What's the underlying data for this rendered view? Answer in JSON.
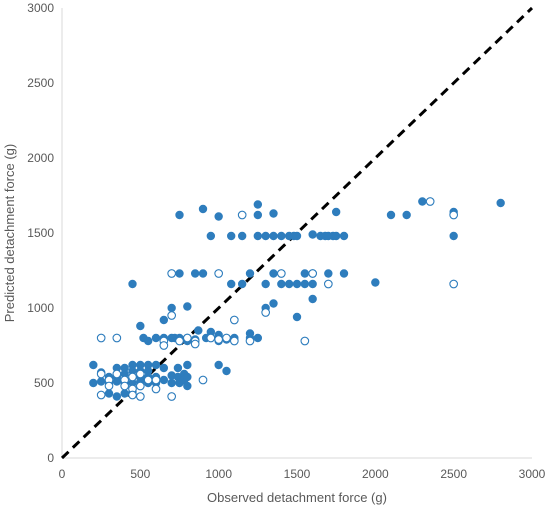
{
  "chart_data": {
    "type": "scatter",
    "title": "",
    "xlabel": "Observed detachment force (g)",
    "ylabel": "Predicted detachment force (g)",
    "xlim": [
      0,
      3000
    ],
    "ylim": [
      0,
      3000
    ],
    "x_ticks": [
      "0",
      "500",
      "1000",
      "1500",
      "2000",
      "2500",
      "3000"
    ],
    "y_ticks": [
      "0",
      "500",
      "1000",
      "1500",
      "2000",
      "2500",
      "3000"
    ],
    "grid": "none",
    "legend": "none",
    "reference_line": {
      "style": "dashed",
      "color": "#000000",
      "from": [
        0,
        0
      ],
      "to": [
        3000,
        3000
      ]
    },
    "colors": {
      "filled": "#2e7dbd",
      "open_stroke": "#2e7dbd",
      "open_fill": "#ffffff",
      "axis": "#d9d9d9",
      "text": "#595959"
    },
    "series": [
      {
        "style": "filled",
        "points": [
          [
            200,
            620
          ],
          [
            200,
            500
          ],
          [
            250,
            570
          ],
          [
            250,
            510
          ],
          [
            300,
            500
          ],
          [
            300,
            430
          ],
          [
            300,
            540
          ],
          [
            350,
            600
          ],
          [
            350,
            540
          ],
          [
            350,
            510
          ],
          [
            350,
            410
          ],
          [
            400,
            600
          ],
          [
            400,
            560
          ],
          [
            400,
            500
          ],
          [
            400,
            430
          ],
          [
            450,
            620
          ],
          [
            450,
            580
          ],
          [
            450,
            540
          ],
          [
            450,
            500
          ],
          [
            450,
            440
          ],
          [
            450,
            1160
          ],
          [
            500,
            620
          ],
          [
            500,
            580
          ],
          [
            500,
            540
          ],
          [
            500,
            510
          ],
          [
            500,
            880
          ],
          [
            520,
            800
          ],
          [
            550,
            620
          ],
          [
            550,
            580
          ],
          [
            550,
            540
          ],
          [
            550,
            500
          ],
          [
            550,
            780
          ],
          [
            600,
            800
          ],
          [
            600,
            620
          ],
          [
            600,
            540
          ],
          [
            600,
            500
          ],
          [
            650,
            920
          ],
          [
            650,
            800
          ],
          [
            650,
            780
          ],
          [
            650,
            600
          ],
          [
            650,
            520
          ],
          [
            700,
            1000
          ],
          [
            700,
            800
          ],
          [
            700,
            550
          ],
          [
            700,
            500
          ],
          [
            720,
            800
          ],
          [
            740,
            600
          ],
          [
            740,
            540
          ],
          [
            750,
            1620
          ],
          [
            750,
            1230
          ],
          [
            750,
            800
          ],
          [
            750,
            500
          ],
          [
            780,
            560
          ],
          [
            780,
            520
          ],
          [
            800,
            1010
          ],
          [
            800,
            800
          ],
          [
            800,
            780
          ],
          [
            800,
            620
          ],
          [
            800,
            540
          ],
          [
            800,
            480
          ],
          [
            850,
            1230
          ],
          [
            850,
            790
          ],
          [
            870,
            850
          ],
          [
            900,
            1660
          ],
          [
            900,
            1230
          ],
          [
            920,
            800
          ],
          [
            950,
            1480
          ],
          [
            950,
            840
          ],
          [
            1000,
            1610
          ],
          [
            1000,
            820
          ],
          [
            1000,
            780
          ],
          [
            1000,
            620
          ],
          [
            1050,
            580
          ],
          [
            1050,
            790
          ],
          [
            1080,
            1480
          ],
          [
            1080,
            1160
          ],
          [
            1100,
            800
          ],
          [
            1150,
            1480
          ],
          [
            1150,
            1160
          ],
          [
            1200,
            1230
          ],
          [
            1200,
            830
          ],
          [
            1200,
            800
          ],
          [
            1250,
            1690
          ],
          [
            1250,
            1620
          ],
          [
            1250,
            1480
          ],
          [
            1250,
            800
          ],
          [
            1300,
            1480
          ],
          [
            1300,
            1160
          ],
          [
            1300,
            1000
          ],
          [
            1350,
            1630
          ],
          [
            1350,
            1480
          ],
          [
            1350,
            1230
          ],
          [
            1350,
            1030
          ],
          [
            1400,
            1480
          ],
          [
            1400,
            1160
          ],
          [
            1450,
            1480
          ],
          [
            1450,
            1160
          ],
          [
            1480,
            1480
          ],
          [
            1500,
            1480
          ],
          [
            1500,
            1160
          ],
          [
            1500,
            940
          ],
          [
            1550,
            1230
          ],
          [
            1550,
            1160
          ],
          [
            1600,
            1490
          ],
          [
            1600,
            1230
          ],
          [
            1600,
            1160
          ],
          [
            1600,
            1060
          ],
          [
            1650,
            1480
          ],
          [
            1680,
            1480
          ],
          [
            1700,
            1480
          ],
          [
            1700,
            1230
          ],
          [
            1730,
            1480
          ],
          [
            1750,
            1640
          ],
          [
            1750,
            1480
          ],
          [
            1800,
            1480
          ],
          [
            1800,
            1230
          ],
          [
            2000,
            1170
          ],
          [
            2100,
            1620
          ],
          [
            2200,
            1620
          ],
          [
            2300,
            1710
          ],
          [
            2500,
            1640
          ],
          [
            2500,
            1480
          ],
          [
            2800,
            1700
          ]
        ]
      },
      {
        "style": "open",
        "points": [
          [
            250,
            800
          ],
          [
            250,
            560
          ],
          [
            250,
            420
          ],
          [
            300,
            520
          ],
          [
            300,
            480
          ],
          [
            350,
            800
          ],
          [
            350,
            560
          ],
          [
            400,
            520
          ],
          [
            400,
            480
          ],
          [
            450,
            540
          ],
          [
            450,
            460
          ],
          [
            450,
            420
          ],
          [
            500,
            560
          ],
          [
            500,
            480
          ],
          [
            500,
            410
          ],
          [
            550,
            520
          ],
          [
            600,
            520
          ],
          [
            600,
            460
          ],
          [
            650,
            780
          ],
          [
            650,
            750
          ],
          [
            700,
            1230
          ],
          [
            700,
            950
          ],
          [
            700,
            410
          ],
          [
            750,
            780
          ],
          [
            800,
            800
          ],
          [
            850,
            780
          ],
          [
            850,
            760
          ],
          [
            900,
            520
          ],
          [
            950,
            800
          ],
          [
            1000,
            1230
          ],
          [
            1000,
            790
          ],
          [
            1050,
            800
          ],
          [
            1100,
            920
          ],
          [
            1100,
            780
          ],
          [
            1150,
            1620
          ],
          [
            1200,
            780
          ],
          [
            1300,
            970
          ],
          [
            1400,
            1230
          ],
          [
            1550,
            780
          ],
          [
            1600,
            1230
          ],
          [
            1700,
            1160
          ],
          [
            2350,
            1710
          ],
          [
            2500,
            1620
          ],
          [
            2500,
            1160
          ]
        ]
      }
    ]
  }
}
